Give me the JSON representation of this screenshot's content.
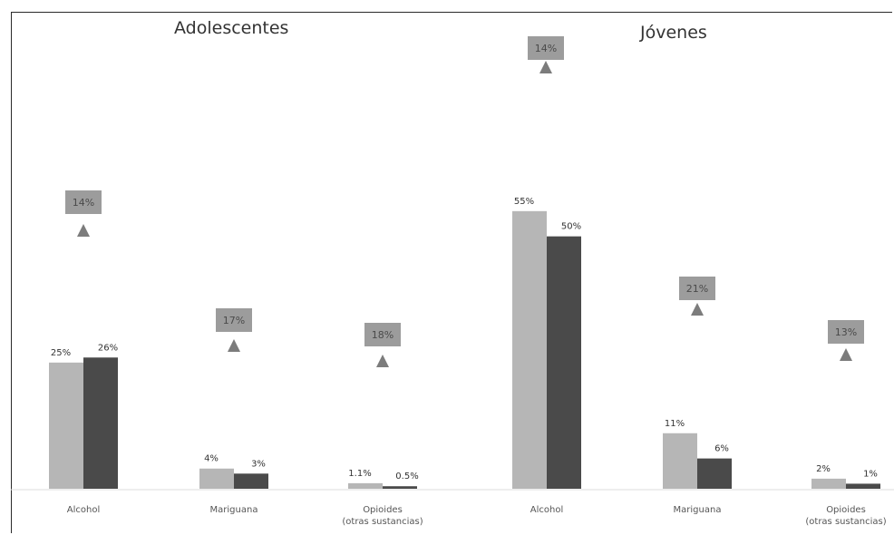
{
  "colors": {
    "series_light": "#b6b6b6",
    "series_dark": "#4a4a4a",
    "badge": "#9c9c9c",
    "arrow": "#7c7c7c"
  },
  "chart_data": [
    {
      "type": "bar",
      "title": "Adolescentes",
      "categories": [
        "Alcohol",
        "Mariguana",
        "Opioides (otras sustancias)"
      ],
      "category_lines": [
        [
          "Alcohol"
        ],
        [
          "Mariguana"
        ],
        [
          "Opioides",
          "(otras sustancias)"
        ]
      ],
      "series": [
        {
          "values": [
            25,
            4,
            1.1
          ],
          "labels": [
            "25%",
            "4%",
            "1.1%"
          ]
        },
        {
          "values": [
            26,
            3,
            0.5
          ],
          "labels": [
            "26%",
            "3%",
            "0.5%"
          ]
        }
      ],
      "changes": [
        "14%",
        "17%",
        "18%"
      ],
      "change_direction": "up",
      "ylim": [
        0,
        60
      ]
    },
    {
      "type": "bar",
      "title": "Jóvenes",
      "categories": [
        "Alcohol",
        "Mariguana",
        "Opioides (otras sustancias)"
      ],
      "category_lines": [
        [
          "Alcohol"
        ],
        [
          "Mariguana"
        ],
        [
          "Opioides",
          "(otras sustancias)"
        ]
      ],
      "series": [
        {
          "values": [
            55,
            11,
            2
          ],
          "labels": [
            "55%",
            "11%",
            "2%"
          ]
        },
        {
          "values": [
            50,
            6,
            1
          ],
          "labels": [
            "50%",
            "6%",
            "1%"
          ]
        }
      ],
      "changes": [
        "14%",
        "21%",
        "13%"
      ],
      "change_direction": "up",
      "ylim": [
        0,
        60
      ]
    }
  ]
}
